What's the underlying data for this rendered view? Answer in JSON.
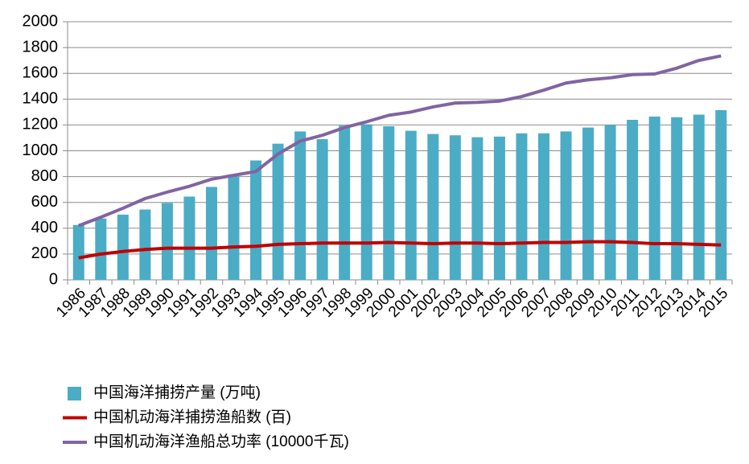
{
  "chart_data": {
    "type": "bar",
    "categories": [
      "1986",
      "1987",
      "1988",
      "1989",
      "1990",
      "1991",
      "1992",
      "1993",
      "1994",
      "1995",
      "1996",
      "1997",
      "1998",
      "1999",
      "2000",
      "2001",
      "2002",
      "2003",
      "2004",
      "2005",
      "2006",
      "2007",
      "2008",
      "2009",
      "2010",
      "2011",
      "2012",
      "2013",
      "2014",
      "2015"
    ],
    "series": [
      {
        "name": "中国海洋捕捞产量 (万吨)",
        "type": "bar",
        "color": "#4bacc6",
        "values": [
          425,
          475,
          505,
          545,
          595,
          645,
          720,
          800,
          925,
          1055,
          1150,
          1090,
          1195,
          1205,
          1190,
          1155,
          1130,
          1120,
          1105,
          1110,
          1135,
          1135,
          1150,
          1180,
          1200,
          1240,
          1265,
          1260,
          1280,
          1315
        ]
      },
      {
        "name": "中国机动海洋捕捞渔船数 (百)",
        "type": "line",
        "color": "#c00000",
        "values": [
          170,
          200,
          220,
          235,
          245,
          245,
          245,
          255,
          260,
          275,
          280,
          285,
          285,
          285,
          290,
          285,
          280,
          285,
          285,
          280,
          285,
          290,
          290,
          295,
          295,
          290,
          280,
          280,
          275,
          270
        ]
      },
      {
        "name": "中国机动海洋渔船总功率 (10000千瓦)",
        "type": "line",
        "color": "#8064a2",
        "values": [
          420,
          485,
          555,
          630,
          680,
          725,
          780,
          810,
          840,
          975,
          1075,
          1120,
          1180,
          1225,
          1275,
          1300,
          1340,
          1370,
          1375,
          1385,
          1420,
          1470,
          1525,
          1550,
          1565,
          1590,
          1595,
          1640,
          1700,
          1735
        ]
      }
    ],
    "ylim": [
      0,
      2000
    ],
    "yticks": [
      0,
      200,
      400,
      600,
      800,
      1000,
      1200,
      1400,
      1600,
      1800,
      2000
    ],
    "grid": true
  }
}
